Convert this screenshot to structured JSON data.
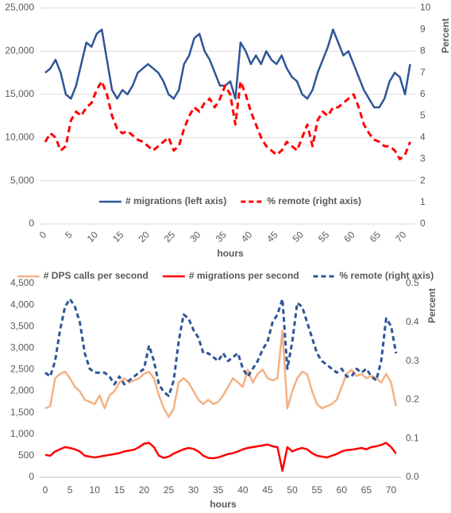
{
  "chart_data": [
    {
      "type": "line",
      "xlabel": "hours",
      "y2label": "Percent",
      "grid": true,
      "legend": "bottom",
      "xtick_rotation": -45,
      "x": [
        0,
        1,
        2,
        3,
        4,
        5,
        6,
        7,
        8,
        9,
        10,
        11,
        12,
        13,
        14,
        15,
        16,
        17,
        18,
        19,
        20,
        21,
        22,
        23,
        24,
        25,
        26,
        27,
        28,
        29,
        30,
        31,
        32,
        33,
        34,
        35,
        36,
        37,
        38,
        39,
        40,
        41,
        42,
        43,
        44,
        45,
        46,
        47,
        48,
        49,
        50,
        51,
        52,
        53,
        54,
        55,
        56,
        57,
        58,
        59,
        60,
        61,
        62,
        63,
        64,
        65,
        66,
        67,
        68,
        69,
        70,
        71
      ],
      "xlim": [
        0,
        72
      ],
      "xticks": [
        0,
        5,
        10,
        15,
        20,
        25,
        30,
        35,
        40,
        45,
        50,
        55,
        60,
        65,
        70
      ],
      "ylim": [
        0,
        25000
      ],
      "yticks": [
        0,
        {
          "value": 5000,
          "label": "5,000"
        },
        {
          "value": 10000,
          "label": "10,000"
        },
        {
          "value": 15000,
          "label": "15,000"
        },
        {
          "value": 20000,
          "label": "20,000"
        },
        {
          "value": 25000,
          "label": "25,000"
        }
      ],
      "y2lim": [
        0,
        10
      ],
      "y2ticks": [
        0,
        1,
        2,
        3,
        4,
        5,
        6,
        7,
        8,
        9,
        10
      ],
      "series": [
        {
          "name": "# migrations (left axis)",
          "color": "#2f5597",
          "dashed": false,
          "axis": "y",
          "values": [
            17500,
            18000,
            19000,
            17500,
            15000,
            14500,
            16000,
            18500,
            21000,
            20500,
            22000,
            22500,
            19000,
            15500,
            14500,
            15500,
            15000,
            16000,
            17500,
            18000,
            18500,
            18000,
            17500,
            16500,
            15000,
            14500,
            15500,
            18500,
            19500,
            21500,
            22000,
            20000,
            19000,
            17500,
            16000,
            16000,
            16500,
            14500,
            21000,
            20000,
            18500,
            19500,
            18500,
            20000,
            19000,
            18500,
            19500,
            18000,
            17000,
            16500,
            15000,
            14500,
            15500,
            17500,
            19000,
            20500,
            22500,
            21000,
            19500,
            20000,
            18500,
            17000,
            15500,
            14500,
            13500,
            13500,
            14500,
            16500,
            17500,
            17000,
            15000,
            18500
          ]
        },
        {
          "name": "% remote (right axis)",
          "color": "#ff0000",
          "dashed": true,
          "axis": "y2",
          "values": [
            3.8,
            4.2,
            4.0,
            3.4,
            3.6,
            4.8,
            5.2,
            5.0,
            5.4,
            5.6,
            6.2,
            6.6,
            6.0,
            5.0,
            4.4,
            4.2,
            4.3,
            4.1,
            3.9,
            3.8,
            3.6,
            3.4,
            3.6,
            3.8,
            4.0,
            3.4,
            3.6,
            4.4,
            5.0,
            5.4,
            5.2,
            5.6,
            5.8,
            5.4,
            5.8,
            6.4,
            6.0,
            4.6,
            6.6,
            6.0,
            5.2,
            4.6,
            4.0,
            3.6,
            3.4,
            3.2,
            3.4,
            3.8,
            3.6,
            3.4,
            4.0,
            4.6,
            3.6,
            4.8,
            5.2,
            5.0,
            5.4,
            5.4,
            5.6,
            5.8,
            6.0,
            5.4,
            4.6,
            4.2,
            3.9,
            3.8,
            3.6,
            3.6,
            3.4,
            3.0,
            3.2,
            3.8
          ]
        }
      ]
    },
    {
      "type": "line",
      "xlabel": "hours",
      "y2label": "Percent",
      "grid": false,
      "legend": "top",
      "xtick_rotation": 0,
      "x": [
        0,
        1,
        2,
        3,
        4,
        5,
        6,
        7,
        8,
        9,
        10,
        11,
        12,
        13,
        14,
        15,
        16,
        17,
        18,
        19,
        20,
        21,
        22,
        23,
        24,
        25,
        26,
        27,
        28,
        29,
        30,
        31,
        32,
        33,
        34,
        35,
        36,
        37,
        38,
        39,
        40,
        41,
        42,
        43,
        44,
        45,
        46,
        47,
        48,
        49,
        50,
        51,
        52,
        53,
        54,
        55,
        56,
        57,
        58,
        59,
        60,
        61,
        62,
        63,
        64,
        65,
        66,
        67,
        68,
        69,
        70,
        71
      ],
      "xlim": [
        0,
        72
      ],
      "xticks": [
        0,
        5,
        10,
        15,
        20,
        25,
        30,
        35,
        40,
        45,
        50,
        55,
        60,
        65,
        70
      ],
      "ylim": [
        0,
        4500
      ],
      "yticks": [
        0,
        500,
        {
          "value": 1000,
          "label": "1,000"
        },
        {
          "value": 1500,
          "label": "1,500"
        },
        {
          "value": 2000,
          "label": "2,000"
        },
        {
          "value": 2500,
          "label": "2,500"
        },
        {
          "value": 3000,
          "label": "3,000"
        },
        {
          "value": 3500,
          "label": "3,500"
        },
        {
          "value": 4000,
          "label": "4,000"
        },
        {
          "value": 4500,
          "label": "4,500"
        }
      ],
      "y2lim": [
        0,
        0.5
      ],
      "y2ticks": [
        {
          "value": 0,
          "label": "0.0"
        },
        0.1,
        0.2,
        0.3,
        0.4,
        0.5
      ],
      "series": [
        {
          "name": "# DPS calls per second",
          "color": "#f4b183",
          "dashed": false,
          "axis": "y",
          "values": [
            1600,
            1650,
            2300,
            2400,
            2450,
            2300,
            2100,
            2000,
            1800,
            1750,
            1700,
            1900,
            1600,
            1900,
            2000,
            2200,
            2300,
            2200,
            2250,
            2300,
            2400,
            2450,
            2300,
            1900,
            1600,
            1400,
            1600,
            2200,
            2300,
            2200,
            2000,
            1800,
            1700,
            1800,
            1700,
            1750,
            1900,
            2100,
            2300,
            2200,
            2100,
            2500,
            2200,
            2400,
            2500,
            2300,
            2250,
            2300,
            3400,
            1600,
            2000,
            2300,
            2450,
            2400,
            2000,
            1700,
            1600,
            1650,
            1700,
            1800,
            2100,
            2400,
            2500,
            2350,
            2400,
            2300,
            2350,
            2300,
            2200,
            2400,
            2200,
            1650
          ]
        },
        {
          "name": "# migrations per second",
          "color": "#ff0000",
          "dashed": false,
          "axis": "y",
          "values": [
            520,
            500,
            600,
            650,
            700,
            680,
            650,
            600,
            500,
            480,
            460,
            480,
            500,
            520,
            540,
            560,
            600,
            620,
            640,
            700,
            780,
            800,
            700,
            500,
            450,
            480,
            550,
            600,
            650,
            680,
            660,
            600,
            500,
            450,
            440,
            460,
            500,
            540,
            560,
            600,
            650,
            680,
            700,
            720,
            740,
            760,
            720,
            700,
            150,
            700,
            600,
            650,
            680,
            650,
            560,
            500,
            480,
            460,
            500,
            540,
            600,
            630,
            640,
            660,
            680,
            650,
            700,
            720,
            750,
            800,
            700,
            550
          ]
        },
        {
          "name": "% remote (right axis)",
          "color": "#2f5597",
          "dashed": true,
          "axis": "y2",
          "values": [
            0.27,
            0.26,
            0.3,
            0.38,
            0.44,
            0.46,
            0.44,
            0.4,
            0.32,
            0.28,
            0.27,
            0.27,
            0.27,
            0.26,
            0.24,
            0.26,
            0.24,
            0.25,
            0.26,
            0.27,
            0.28,
            0.34,
            0.3,
            0.24,
            0.22,
            0.21,
            0.25,
            0.35,
            0.42,
            0.41,
            0.38,
            0.36,
            0.32,
            0.32,
            0.31,
            0.3,
            0.32,
            0.3,
            0.31,
            0.32,
            0.28,
            0.26,
            0.28,
            0.3,
            0.33,
            0.35,
            0.4,
            0.42,
            0.46,
            0.28,
            0.35,
            0.45,
            0.44,
            0.4,
            0.36,
            0.32,
            0.3,
            0.29,
            0.28,
            0.27,
            0.28,
            0.26,
            0.26,
            0.28,
            0.27,
            0.28,
            0.26,
            0.25,
            0.3,
            0.41,
            0.39,
            0.32
          ]
        }
      ]
    }
  ]
}
